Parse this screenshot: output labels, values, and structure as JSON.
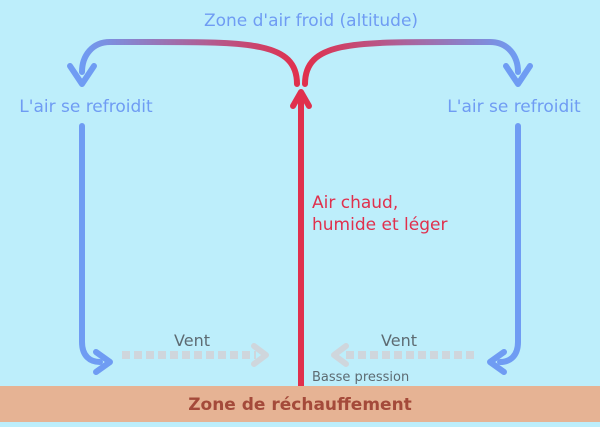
{
  "colors": {
    "sky": "#bdeefb",
    "ground": "#e6b394",
    "cold": "#6f9cf3",
    "warm": "#e0304d",
    "wind": "#cfd6dc",
    "text_dark": "#5d6b72",
    "text_ground": "#a44a3a"
  },
  "labels": {
    "top_zone": "Zone d'air froid (altitude)",
    "cooling_left": "L'air se refroidit",
    "cooling_right": "L'air se refroidit",
    "warm_air_line1": "Air chaud,",
    "warm_air_line2": "humide et léger",
    "wind_left": "Vent",
    "wind_right": "Vent",
    "low_pressure": "Basse pression",
    "ground_zone": "Zone de réchauffement"
  }
}
